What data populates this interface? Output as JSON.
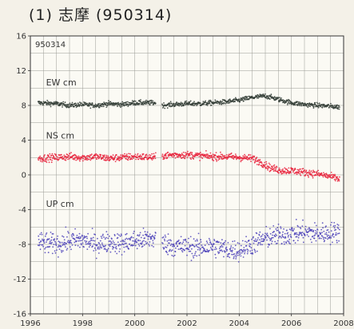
{
  "title": "(1) 志摩 (950314)",
  "chart_data": {
    "type": "scatter",
    "station_label": "950314",
    "xlim": [
      1996,
      2008
    ],
    "ylim": [
      -16,
      16
    ],
    "x_ticks": [
      1996,
      1998,
      2000,
      2002,
      2004,
      2006,
      2008
    ],
    "y_ticks": [
      16,
      12,
      8,
      4,
      0,
      -4,
      -8,
      -12,
      -16
    ],
    "grid": true,
    "data_gap": [
      2000.8,
      2001.05
    ],
    "series": [
      {
        "name": "EW cm",
        "color": "#2f3a33",
        "x": [
          1996.3,
          1997.0,
          1997.5,
          1998.0,
          1998.5,
          1999.0,
          1999.5,
          2000.0,
          2000.8,
          2001.05,
          2001.5,
          2002.0,
          2002.5,
          2003.0,
          2003.5,
          2004.0,
          2004.5,
          2005.0,
          2005.5,
          2006.0,
          2006.5,
          2007.0,
          2007.5,
          2007.85
        ],
        "values": [
          8.3,
          8.2,
          8.0,
          8.1,
          8.0,
          8.2,
          8.1,
          8.3,
          8.3,
          8.0,
          8.1,
          8.2,
          8.2,
          8.3,
          8.4,
          8.6,
          8.9,
          9.1,
          8.7,
          8.3,
          8.1,
          8.0,
          7.9,
          7.8
        ],
        "noise": 0.3,
        "label_at": [
          1996.6,
          10.3
        ]
      },
      {
        "name": "NS cm",
        "color": "#e8203a",
        "x": [
          1996.3,
          1997.0,
          1997.5,
          1998.0,
          1998.5,
          1999.0,
          1999.5,
          2000.0,
          2000.8,
          2001.05,
          2001.5,
          2002.0,
          2002.5,
          2003.0,
          2003.5,
          2004.0,
          2004.5,
          2004.8,
          2005.2,
          2005.6,
          2006.0,
          2006.5,
          2007.0,
          2007.5,
          2007.85
        ],
        "values": [
          1.9,
          2.0,
          2.1,
          2.0,
          2.1,
          1.9,
          2.0,
          2.1,
          2.0,
          2.2,
          2.3,
          2.3,
          2.2,
          2.1,
          2.1,
          2.0,
          1.9,
          1.5,
          0.8,
          0.5,
          0.5,
          0.3,
          0.1,
          -0.2,
          -0.5
        ],
        "noise": 0.45,
        "label_at": [
          1996.6,
          4.2
        ]
      },
      {
        "name": "UP cm",
        "color": "#4a3fb8",
        "x": [
          1996.3,
          1997.0,
          1997.5,
          1998.0,
          1998.5,
          1999.0,
          1999.5,
          2000.0,
          2000.8,
          2001.05,
          2001.5,
          2002.0,
          2002.5,
          2003.0,
          2003.5,
          2004.0,
          2004.5,
          2005.0,
          2005.5,
          2006.0,
          2006.5,
          2007.0,
          2007.5,
          2007.85
        ],
        "values": [
          -7.8,
          -8.0,
          -7.6,
          -7.5,
          -8.0,
          -7.7,
          -7.9,
          -7.6,
          -7.3,
          -7.8,
          -8.2,
          -8.3,
          -8.4,
          -8.2,
          -8.6,
          -8.7,
          -8.0,
          -7.3,
          -7.0,
          -6.8,
          -6.6,
          -6.8,
          -6.7,
          -6.5
        ],
        "noise": 1.3,
        "label_at": [
          1996.6,
          -3.7
        ]
      }
    ]
  }
}
